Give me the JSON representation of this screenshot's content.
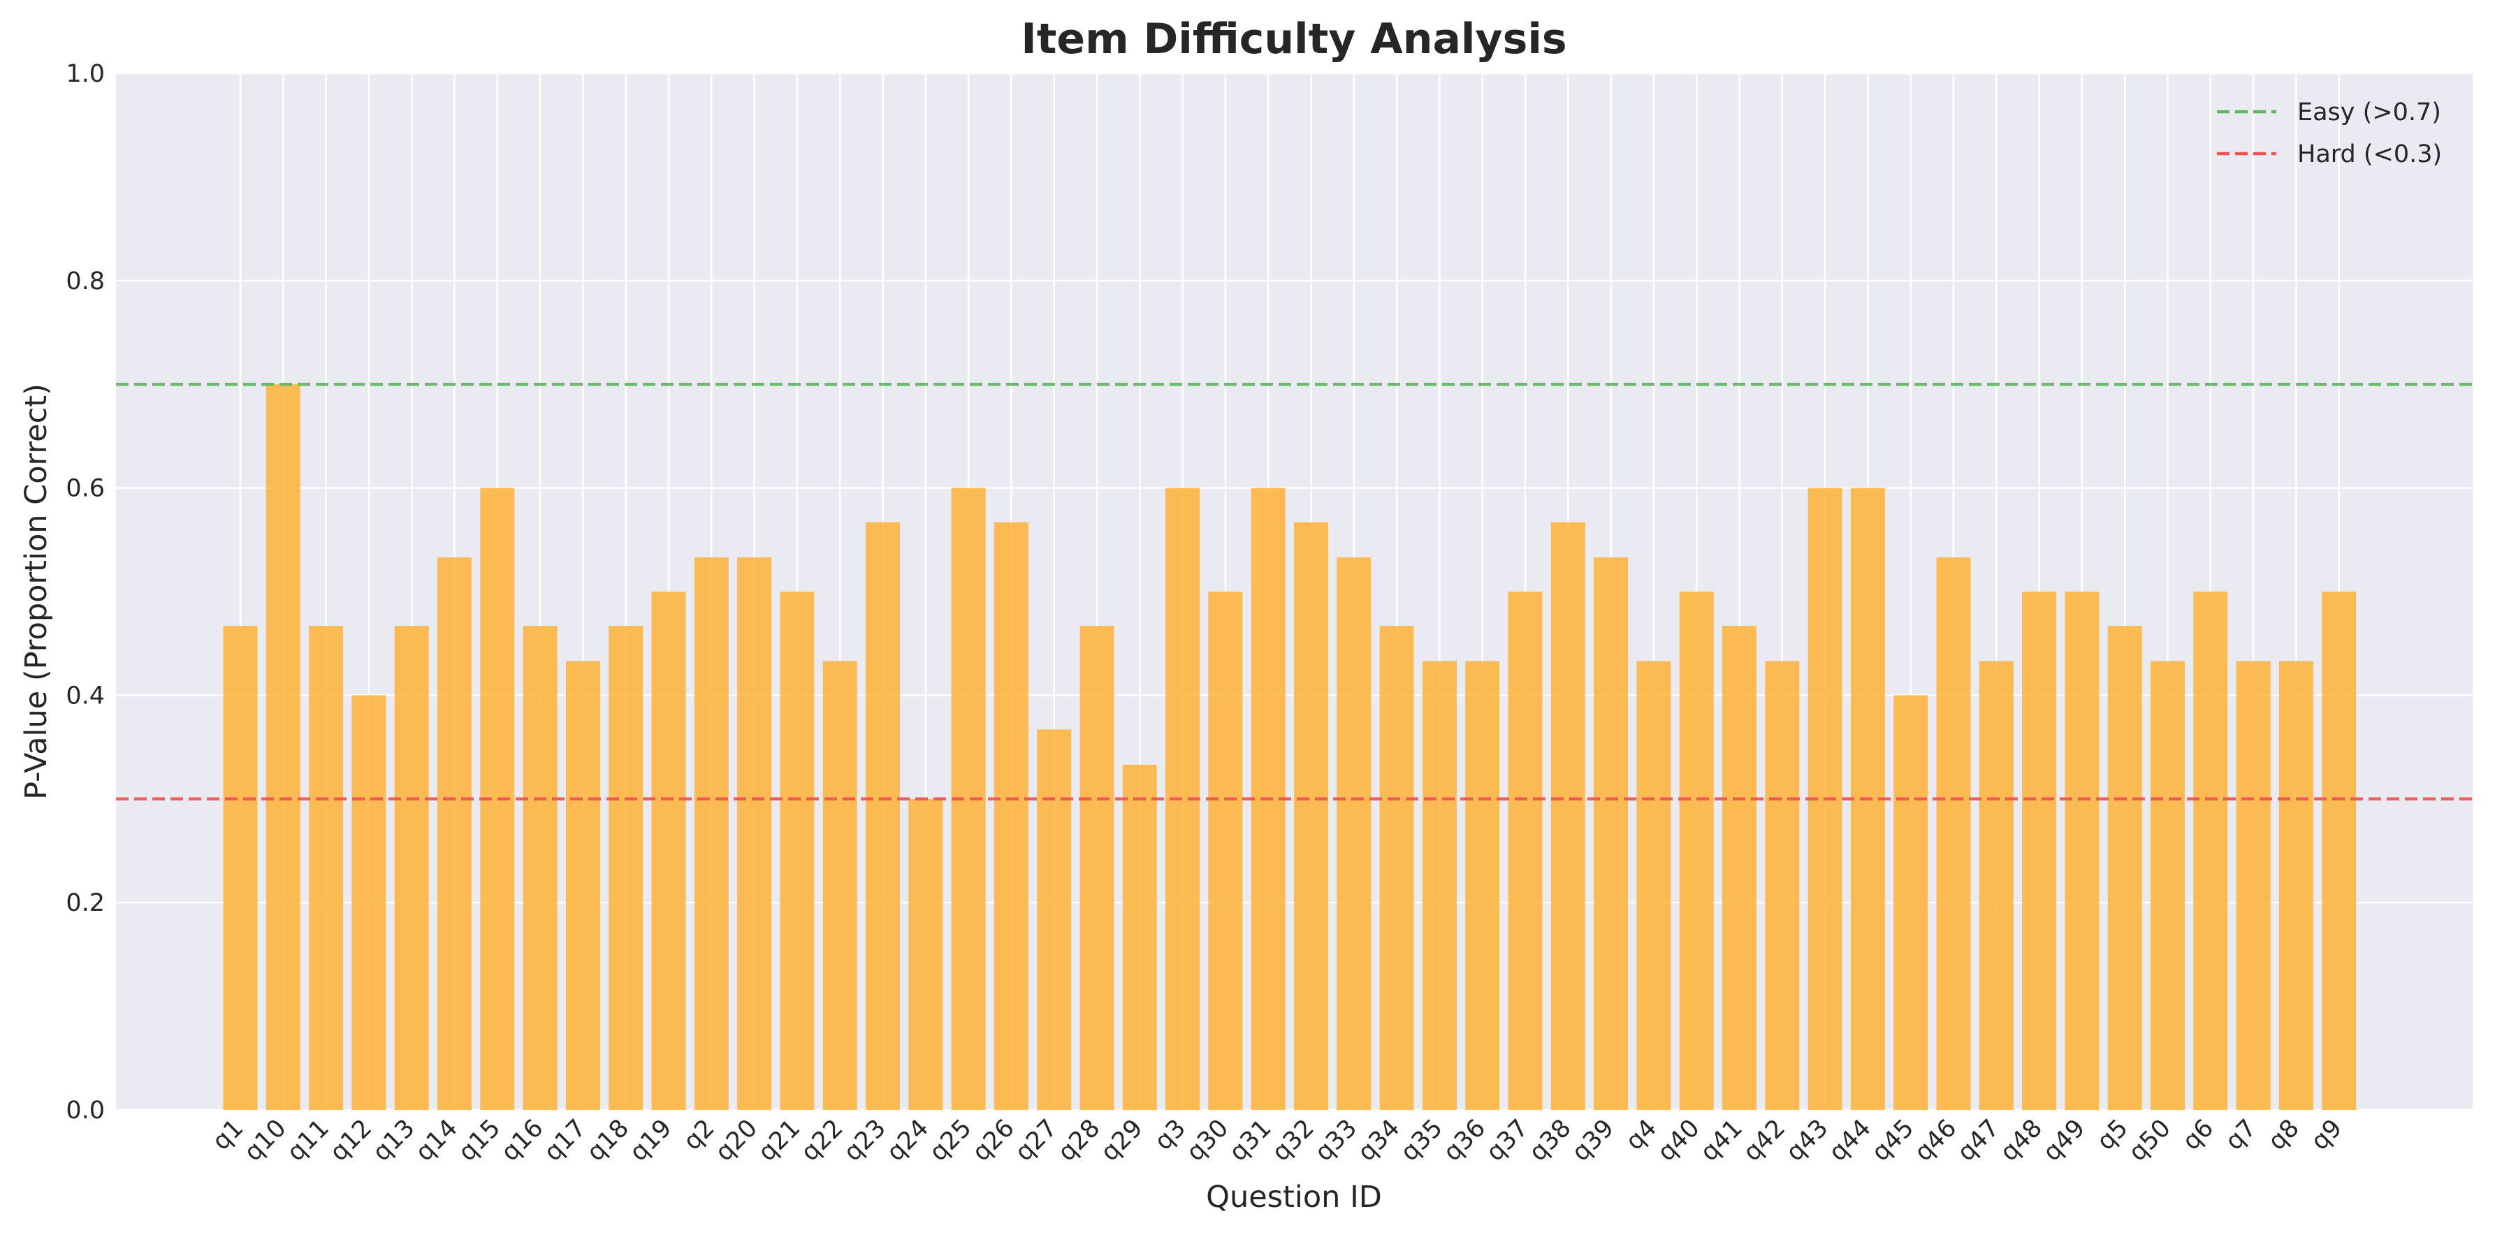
{
  "chart_data": {
    "type": "bar",
    "title": "Item Difficulty Analysis",
    "xlabel": "Question ID",
    "ylabel": "P-Value (Proportion Correct)",
    "ylim": [
      0,
      1.0
    ],
    "yticks": [
      "0.0",
      "0.2",
      "0.4",
      "0.6",
      "0.8",
      "1.0"
    ],
    "grid": true,
    "legend_position": "top-right",
    "bar_color": "#FFB02E",
    "plot_background": "#EAEAF2",
    "categories": [
      "q1",
      "q10",
      "q11",
      "q12",
      "q13",
      "q14",
      "q15",
      "q16",
      "q17",
      "q18",
      "q19",
      "q2",
      "q20",
      "q21",
      "q22",
      "q23",
      "q24",
      "q25",
      "q26",
      "q27",
      "q28",
      "q29",
      "q3",
      "q30",
      "q31",
      "q32",
      "q33",
      "q34",
      "q35",
      "q36",
      "q37",
      "q38",
      "q39",
      "q4",
      "q40",
      "q41",
      "q42",
      "q43",
      "q44",
      "q45",
      "q46",
      "q47",
      "q48",
      "q49",
      "q5",
      "q50",
      "q6",
      "q7",
      "q8",
      "q9"
    ],
    "values": [
      0.467,
      0.7,
      0.467,
      0.4,
      0.467,
      0.533,
      0.6,
      0.467,
      0.433,
      0.467,
      0.5,
      0.533,
      0.533,
      0.5,
      0.433,
      0.567,
      0.3,
      0.6,
      0.567,
      0.367,
      0.467,
      0.333,
      0.6,
      0.5,
      0.6,
      0.567,
      0.533,
      0.467,
      0.433,
      0.433,
      0.5,
      0.567,
      0.533,
      0.433,
      0.5,
      0.467,
      0.433,
      0.6,
      0.6,
      0.4,
      0.533,
      0.433,
      0.5,
      0.5,
      0.467,
      0.433,
      0.5,
      0.433,
      0.433,
      0.5
    ],
    "reference_lines": [
      {
        "name": "Easy (>0.7)",
        "value": 0.7,
        "color": "#5DB55D"
      },
      {
        "name": "Hard (<0.3)",
        "value": 0.3,
        "color": "#F05050"
      }
    ]
  }
}
